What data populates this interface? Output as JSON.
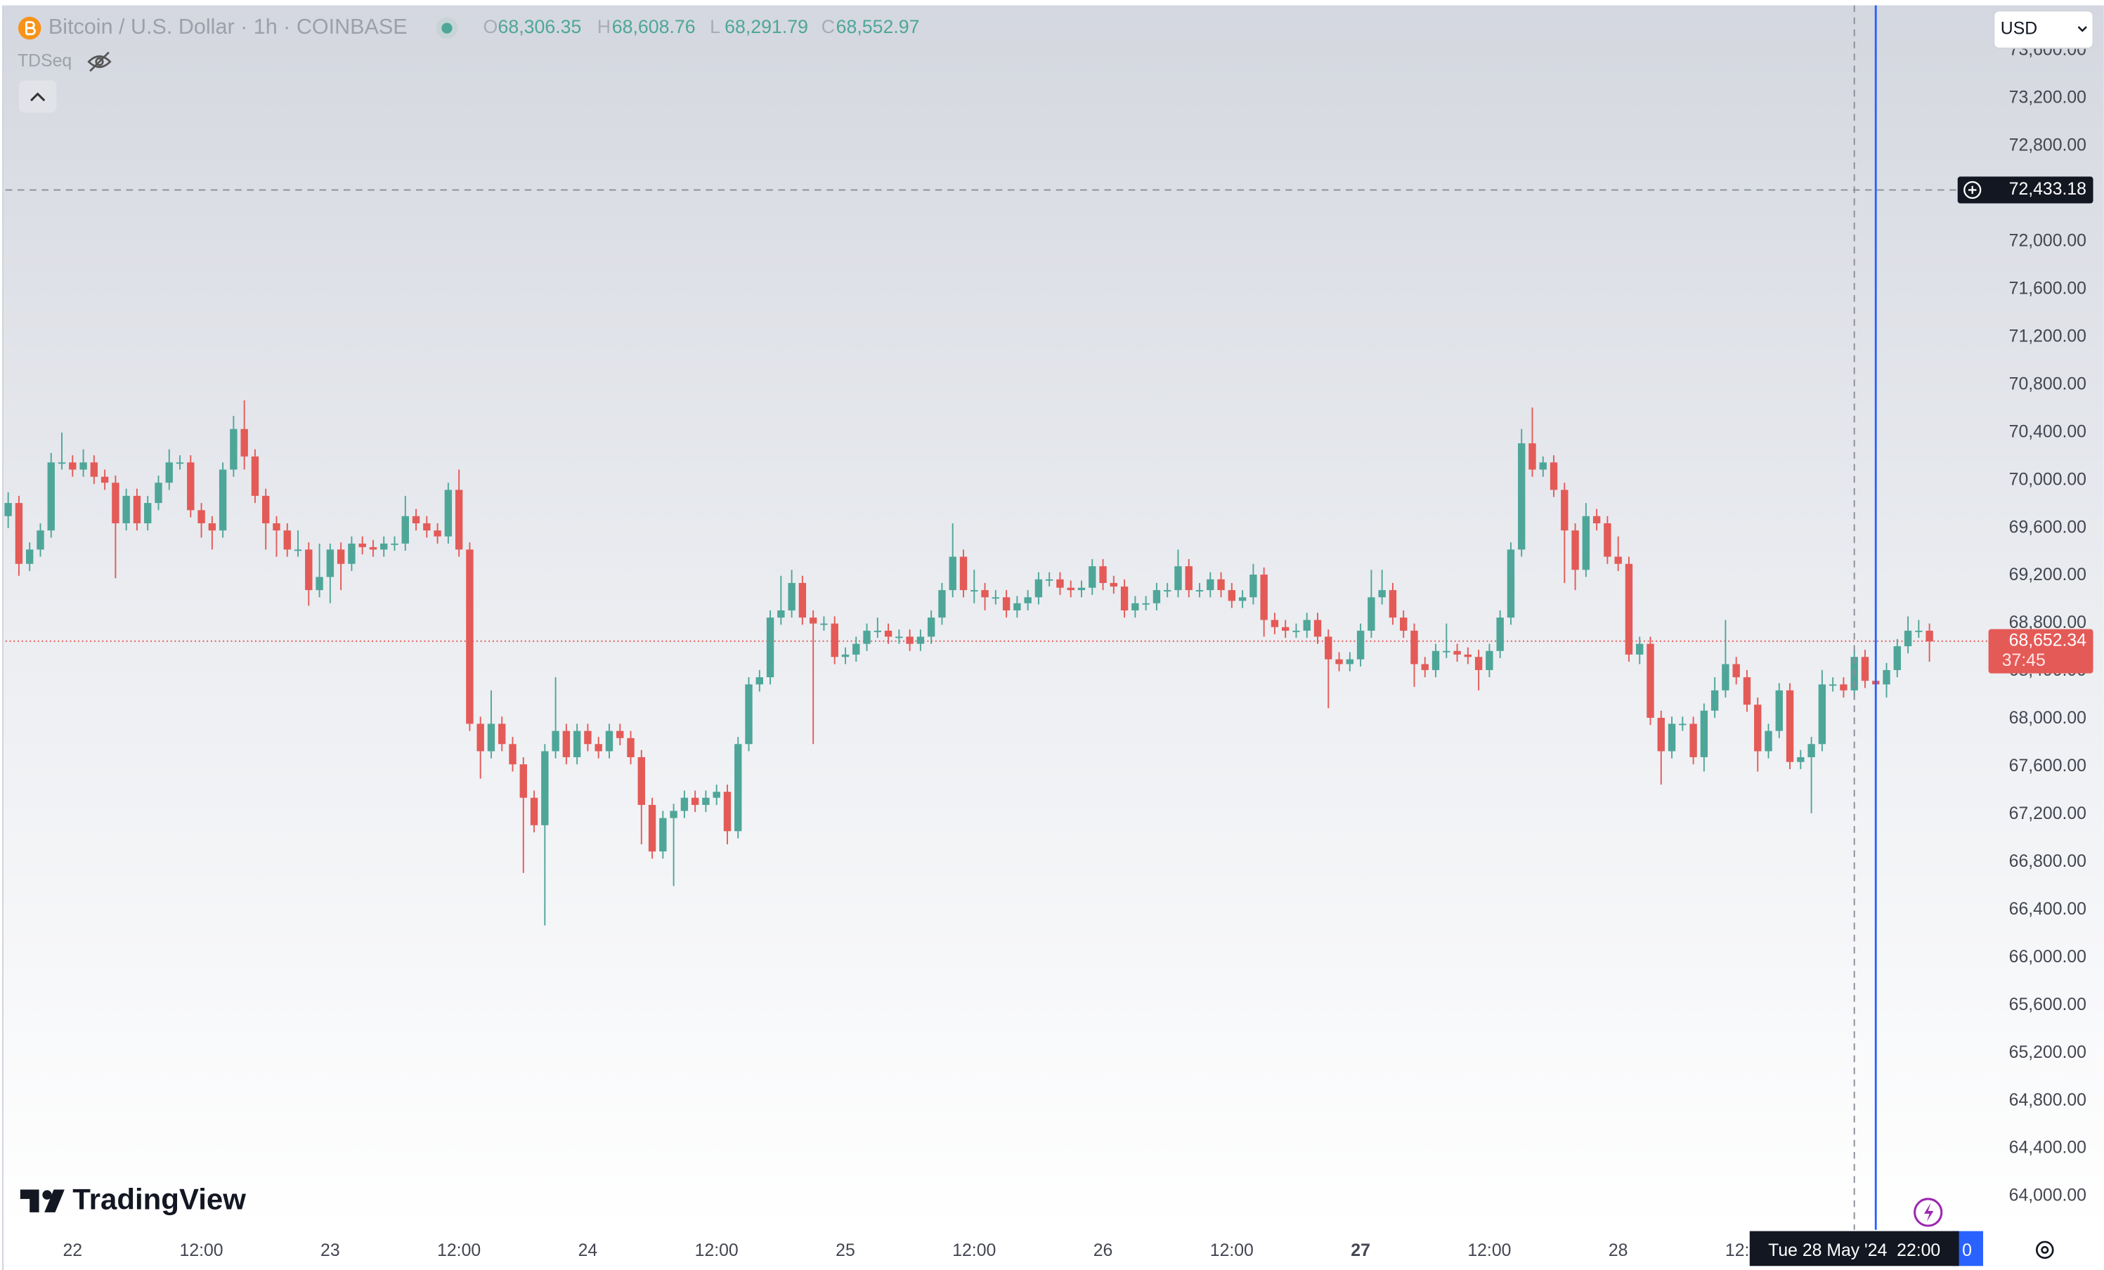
{
  "chart_data": {
    "type": "candlestick",
    "title": "Bitcoin / U.S. Dollar · 1h · COINBASE",
    "indicator": "TDSeq",
    "currency": "USD",
    "logo": "TradingView",
    "ohlc_legend": [
      {
        "label": "O",
        "value": "68,306.35"
      },
      {
        "label": "H",
        "value": "68,608.76"
      },
      {
        "label": "L",
        "value": "68,291.79"
      },
      {
        "label": "C",
        "value": "68,552.97"
      }
    ],
    "up_color": "#4ea699",
    "down_color": "#e45a57",
    "grid": false,
    "xlim": [
      -0.25,
      184.5
    ],
    "xticks": [
      {
        "value": 6,
        "label": "22"
      },
      {
        "value": 18,
        "label": "12:00"
      },
      {
        "value": 30,
        "label": "23"
      },
      {
        "value": 42,
        "label": "12:00"
      },
      {
        "value": 54,
        "label": "24"
      },
      {
        "value": 66,
        "label": "12:00"
      },
      {
        "value": 78,
        "label": "25"
      },
      {
        "value": 90,
        "label": "12:00"
      },
      {
        "value": 102,
        "label": "26"
      },
      {
        "value": 114,
        "label": "12:00"
      },
      {
        "value": 126,
        "label": "27"
      },
      {
        "value": 138,
        "label": "12:00"
      },
      {
        "value": 150,
        "label": "28"
      },
      {
        "value": 162,
        "label": "12:00"
      }
    ],
    "ylim": [
      63720,
      73980
    ],
    "yticks": [
      {
        "value": 64000,
        "label": "64,000.00"
      },
      {
        "value": 64400,
        "label": "64,400.00"
      },
      {
        "value": 64800,
        "label": "64,800.00"
      },
      {
        "value": 65200,
        "label": "65,200.00"
      },
      {
        "value": 65600,
        "label": "65,600.00"
      },
      {
        "value": 66000,
        "label": "66,000.00"
      },
      {
        "value": 66400,
        "label": "66,400.00"
      },
      {
        "value": 66800,
        "label": "66,800.00"
      },
      {
        "value": 67200,
        "label": "67,200.00"
      },
      {
        "value": 67600,
        "label": "67,600.00"
      },
      {
        "value": 68000,
        "label": "68,000.00"
      },
      {
        "value": 68400,
        "label": "68,400.00"
      },
      {
        "value": 68800,
        "label": "68,800.00"
      },
      {
        "value": 69200,
        "label": "69,200.00"
      },
      {
        "value": 69600,
        "label": "69,600.00"
      },
      {
        "value": 70000,
        "label": "70,000.00"
      },
      {
        "value": 70400,
        "label": "70,400.00"
      },
      {
        "value": 70800,
        "label": "70,800.00"
      },
      {
        "value": 71200,
        "label": "71,200.00"
      },
      {
        "value": 71600,
        "label": "71,600.00"
      },
      {
        "value": 72000,
        "label": "72,000.00"
      },
      {
        "value": 72400,
        "label": "72,400.00"
      },
      {
        "value": 72800,
        "label": "72,800.00"
      },
      {
        "value": 73200,
        "label": "73,200.00"
      },
      {
        "value": 73600,
        "label": "73,600.00"
      }
    ],
    "last_price": {
      "value": 68652.34,
      "label": "68,652.34",
      "countdown": "37:45"
    },
    "crosshair": {
      "x": 172,
      "price": 72433.18,
      "price_label": "72,433.18",
      "time_label": "Tue 28 May '24  22:00"
    },
    "vertical_line": {
      "x": 174,
      "color": "#2962ff",
      "label": "0"
    },
    "ohlc": [
      [
        69700,
        69900,
        69600,
        69810
      ],
      [
        69810,
        69870,
        69200,
        69300
      ],
      [
        69300,
        69480,
        69240,
        69420
      ],
      [
        69420,
        69640,
        69360,
        69580
      ],
      [
        69580,
        70230,
        69520,
        70150
      ],
      [
        70150,
        70400,
        70090,
        70150
      ],
      [
        70150,
        70210,
        70030,
        70090
      ],
      [
        70090,
        70260,
        70030,
        70150
      ],
      [
        70150,
        70210,
        69970,
        70030
      ],
      [
        70030,
        70090,
        69920,
        69980
      ],
      [
        69980,
        70040,
        69180,
        69640
      ],
      [
        69640,
        69930,
        69580,
        69870
      ],
      [
        69870,
        69930,
        69580,
        69640
      ],
      [
        69640,
        69870,
        69580,
        69810
      ],
      [
        69810,
        70040,
        69750,
        69980
      ],
      [
        69980,
        70260,
        69920,
        70150
      ],
      [
        70150,
        70210,
        70090,
        70150
      ],
      [
        70150,
        70210,
        69690,
        69750
      ],
      [
        69750,
        69810,
        69520,
        69640
      ],
      [
        69640,
        69700,
        69420,
        69580
      ],
      [
        69580,
        70150,
        69520,
        70090
      ],
      [
        70090,
        70540,
        70030,
        70430
      ],
      [
        70430,
        70670,
        70090,
        70200
      ],
      [
        70200,
        70260,
        69810,
        69870
      ],
      [
        69870,
        69930,
        69420,
        69640
      ],
      [
        69640,
        69700,
        69360,
        69580
      ],
      [
        69580,
        69640,
        69360,
        69420
      ],
      [
        69420,
        69580,
        69360,
        69420
      ],
      [
        69420,
        69480,
        68950,
        69080
      ],
      [
        69080,
        69470,
        69020,
        69190
      ],
      [
        69190,
        69470,
        68970,
        69420
      ],
      [
        69420,
        69480,
        69080,
        69300
      ],
      [
        69300,
        69530,
        69240,
        69470
      ],
      [
        69470,
        69530,
        69380,
        69440
      ],
      [
        69440,
        69500,
        69360,
        69420
      ],
      [
        69420,
        69530,
        69360,
        69470
      ],
      [
        69470,
        69530,
        69410,
        69470
      ],
      [
        69470,
        69870,
        69410,
        69700
      ],
      [
        69700,
        69760,
        69580,
        69640
      ],
      [
        69640,
        69700,
        69520,
        69580
      ],
      [
        69580,
        69640,
        69470,
        69530
      ],
      [
        69530,
        69980,
        69470,
        69920
      ],
      [
        69920,
        70090,
        69360,
        69420
      ],
      [
        69420,
        69480,
        67900,
        67960
      ],
      [
        67960,
        68020,
        67500,
        67730
      ],
      [
        67730,
        68240,
        67670,
        67960
      ],
      [
        67960,
        68020,
        67730,
        67790
      ],
      [
        67790,
        67850,
        67560,
        67620
      ],
      [
        67620,
        67680,
        66710,
        67340
      ],
      [
        67340,
        67400,
        67050,
        67110
      ],
      [
        67110,
        67790,
        66270,
        67730
      ],
      [
        67730,
        68350,
        67670,
        67900
      ],
      [
        67900,
        67960,
        67620,
        67680
      ],
      [
        67680,
        67960,
        67620,
        67900
      ],
      [
        67900,
        67960,
        67730,
        67790
      ],
      [
        67790,
        67850,
        67670,
        67730
      ],
      [
        67730,
        67960,
        67670,
        67900
      ],
      [
        67900,
        67960,
        67780,
        67840
      ],
      [
        67840,
        67900,
        67620,
        67680
      ],
      [
        67680,
        67740,
        66950,
        67280
      ],
      [
        67280,
        67340,
        66830,
        66890
      ],
      [
        66890,
        67230,
        66830,
        67170
      ],
      [
        67170,
        67290,
        66600,
        67230
      ],
      [
        67230,
        67400,
        67170,
        67340
      ],
      [
        67340,
        67400,
        67220,
        67280
      ],
      [
        67280,
        67400,
        67220,
        67340
      ],
      [
        67340,
        67450,
        67280,
        67390
      ],
      [
        67390,
        67450,
        66950,
        67060
      ],
      [
        67060,
        67850,
        67000,
        67790
      ],
      [
        67790,
        68350,
        67730,
        68290
      ],
      [
        68290,
        68410,
        68230,
        68350
      ],
      [
        68350,
        68910,
        68290,
        68850
      ],
      [
        68850,
        69200,
        68790,
        68910
      ],
      [
        68910,
        69250,
        68850,
        69140
      ],
      [
        69140,
        69200,
        68790,
        68850
      ],
      [
        68850,
        68910,
        67790,
        68800
      ],
      [
        68800,
        68860,
        68740,
        68800
      ],
      [
        68800,
        68860,
        68460,
        68520
      ],
      [
        68520,
        68600,
        68460,
        68540
      ],
      [
        68540,
        68690,
        68480,
        68630
      ],
      [
        68630,
        68800,
        68570,
        68740
      ],
      [
        68740,
        68850,
        68680,
        68740
      ],
      [
        68740,
        68800,
        68630,
        68690
      ],
      [
        68690,
        68750,
        68630,
        68690
      ],
      [
        68690,
        68750,
        68570,
        68630
      ],
      [
        68630,
        68750,
        68570,
        68690
      ],
      [
        68690,
        68910,
        68630,
        68850
      ],
      [
        68850,
        69140,
        68790,
        69080
      ],
      [
        69080,
        69640,
        69020,
        69360
      ],
      [
        69360,
        69420,
        69020,
        69080
      ],
      [
        69080,
        69250,
        68970,
        69080
      ],
      [
        69080,
        69140,
        68910,
        69020
      ],
      [
        69020,
        69080,
        68960,
        69020
      ],
      [
        69020,
        69080,
        68850,
        68910
      ],
      [
        68910,
        69030,
        68850,
        68970
      ],
      [
        68970,
        69080,
        68910,
        69020
      ],
      [
        69020,
        69230,
        68960,
        69170
      ],
      [
        69170,
        69230,
        69110,
        69170
      ],
      [
        69170,
        69230,
        69040,
        69100
      ],
      [
        69100,
        69160,
        69020,
        69080
      ],
      [
        69080,
        69160,
        69020,
        69100
      ],
      [
        69100,
        69340,
        69040,
        69280
      ],
      [
        69280,
        69340,
        69080,
        69140
      ],
      [
        69140,
        69200,
        69050,
        69110
      ],
      [
        69110,
        69170,
        68850,
        68910
      ],
      [
        68910,
        69030,
        68850,
        68970
      ],
      [
        68970,
        69030,
        68910,
        68970
      ],
      [
        68970,
        69140,
        68910,
        69080
      ],
      [
        69080,
        69140,
        69020,
        69080
      ],
      [
        69080,
        69420,
        69020,
        69280
      ],
      [
        69280,
        69340,
        69020,
        69080
      ],
      [
        69080,
        69140,
        69020,
        69080
      ],
      [
        69080,
        69230,
        69020,
        69170
      ],
      [
        69170,
        69230,
        69020,
        69080
      ],
      [
        69080,
        69140,
        68930,
        68990
      ],
      [
        68990,
        69080,
        68930,
        69020
      ],
      [
        69020,
        69300,
        68960,
        69210
      ],
      [
        69210,
        69270,
        68690,
        68830
      ],
      [
        68830,
        68890,
        68710,
        68770
      ],
      [
        68770,
        68830,
        68680,
        68740
      ],
      [
        68740,
        68800,
        68680,
        68740
      ],
      [
        68740,
        68890,
        68680,
        68830
      ],
      [
        68830,
        68890,
        68630,
        68690
      ],
      [
        68690,
        68750,
        68090,
        68500
      ],
      [
        68500,
        68560,
        68400,
        68460
      ],
      [
        68460,
        68560,
        68400,
        68500
      ],
      [
        68500,
        68800,
        68440,
        68740
      ],
      [
        68740,
        69250,
        68680,
        69020
      ],
      [
        69020,
        69250,
        68960,
        69080
      ],
      [
        69080,
        69140,
        68790,
        68850
      ],
      [
        68850,
        68910,
        68680,
        68740
      ],
      [
        68740,
        68800,
        68270,
        68460
      ],
      [
        68460,
        68520,
        68350,
        68410
      ],
      [
        68410,
        68630,
        68350,
        68570
      ],
      [
        68570,
        68800,
        68510,
        68570
      ],
      [
        68570,
        68630,
        68480,
        68540
      ],
      [
        68540,
        68600,
        68460,
        68520
      ],
      [
        68520,
        68580,
        68240,
        68410
      ],
      [
        68410,
        68630,
        68350,
        68570
      ],
      [
        68570,
        68910,
        68510,
        68850
      ],
      [
        68850,
        69480,
        68790,
        69420
      ],
      [
        69420,
        70430,
        69360,
        70310
      ],
      [
        70310,
        70610,
        70030,
        70090
      ],
      [
        70090,
        70200,
        70030,
        70150
      ],
      [
        70150,
        70210,
        69860,
        69920
      ],
      [
        69920,
        69980,
        69140,
        69580
      ],
      [
        69580,
        69640,
        69080,
        69250
      ],
      [
        69250,
        69810,
        69190,
        69700
      ],
      [
        69700,
        69760,
        69580,
        69640
      ],
      [
        69640,
        69700,
        69300,
        69360
      ],
      [
        69360,
        69530,
        69240,
        69300
      ],
      [
        69300,
        69360,
        68480,
        68540
      ],
      [
        68540,
        68690,
        68460,
        68630
      ],
      [
        68630,
        68690,
        67950,
        68010
      ],
      [
        68010,
        68070,
        67450,
        67730
      ],
      [
        67730,
        68020,
        67670,
        67960
      ],
      [
        67960,
        68020,
        67900,
        67960
      ],
      [
        67960,
        68020,
        67620,
        67680
      ],
      [
        67680,
        68130,
        67560,
        68070
      ],
      [
        68070,
        68350,
        68010,
        68240
      ],
      [
        68240,
        68830,
        68180,
        68460
      ],
      [
        68460,
        68520,
        68290,
        68350
      ],
      [
        68350,
        68410,
        68060,
        68120
      ],
      [
        68120,
        68180,
        67560,
        67730
      ],
      [
        67730,
        67960,
        67670,
        67900
      ],
      [
        67900,
        68300,
        67840,
        68240
      ],
      [
        68240,
        68300,
        67580,
        67640
      ],
      [
        67640,
        67740,
        67580,
        67680
      ],
      [
        67680,
        67850,
        67210,
        67790
      ],
      [
        67790,
        68410,
        67730,
        68290
      ],
      [
        68290,
        68350,
        68230,
        68290
      ],
      [
        68290,
        68350,
        68180,
        68240
      ],
      [
        68240,
        68580,
        68180,
        68520
      ],
      [
        68520,
        68580,
        68260,
        68320
      ],
      [
        68320,
        68630,
        68230,
        68290
      ],
      [
        68290,
        68470,
        68180,
        68410
      ],
      [
        68410,
        68670,
        68350,
        68610
      ],
      [
        68610,
        68860,
        68550,
        68740
      ],
      [
        68740,
        68830,
        68680,
        68740
      ],
      [
        68740,
        68800,
        68480,
        68650
      ]
    ]
  }
}
